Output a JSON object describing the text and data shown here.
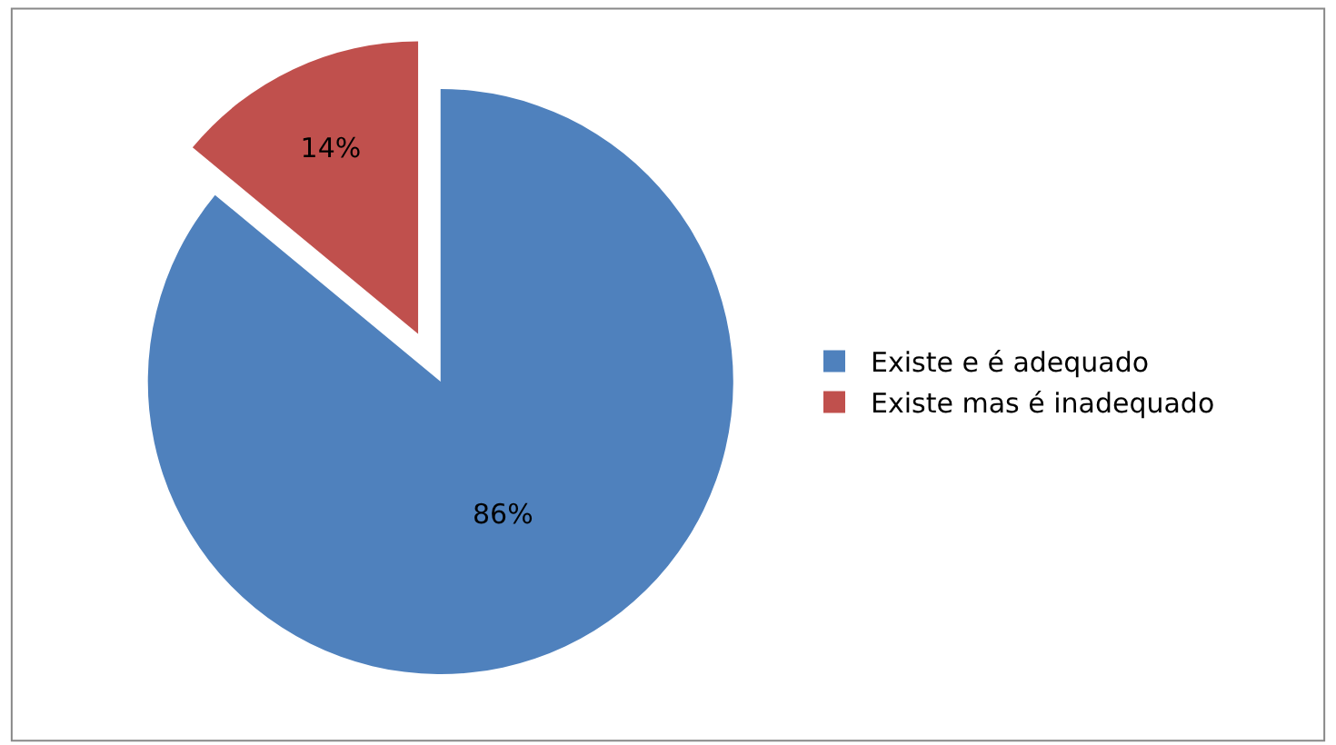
{
  "chart_data": {
    "type": "pie",
    "categories": [
      "Existe e é adequado",
      "Existe mas é inadequado"
    ],
    "values": [
      86,
      14
    ],
    "colors": [
      "#4f81bd",
      "#c0504d"
    ],
    "value_labels": [
      "86%",
      "14%"
    ],
    "legend": "right"
  }
}
